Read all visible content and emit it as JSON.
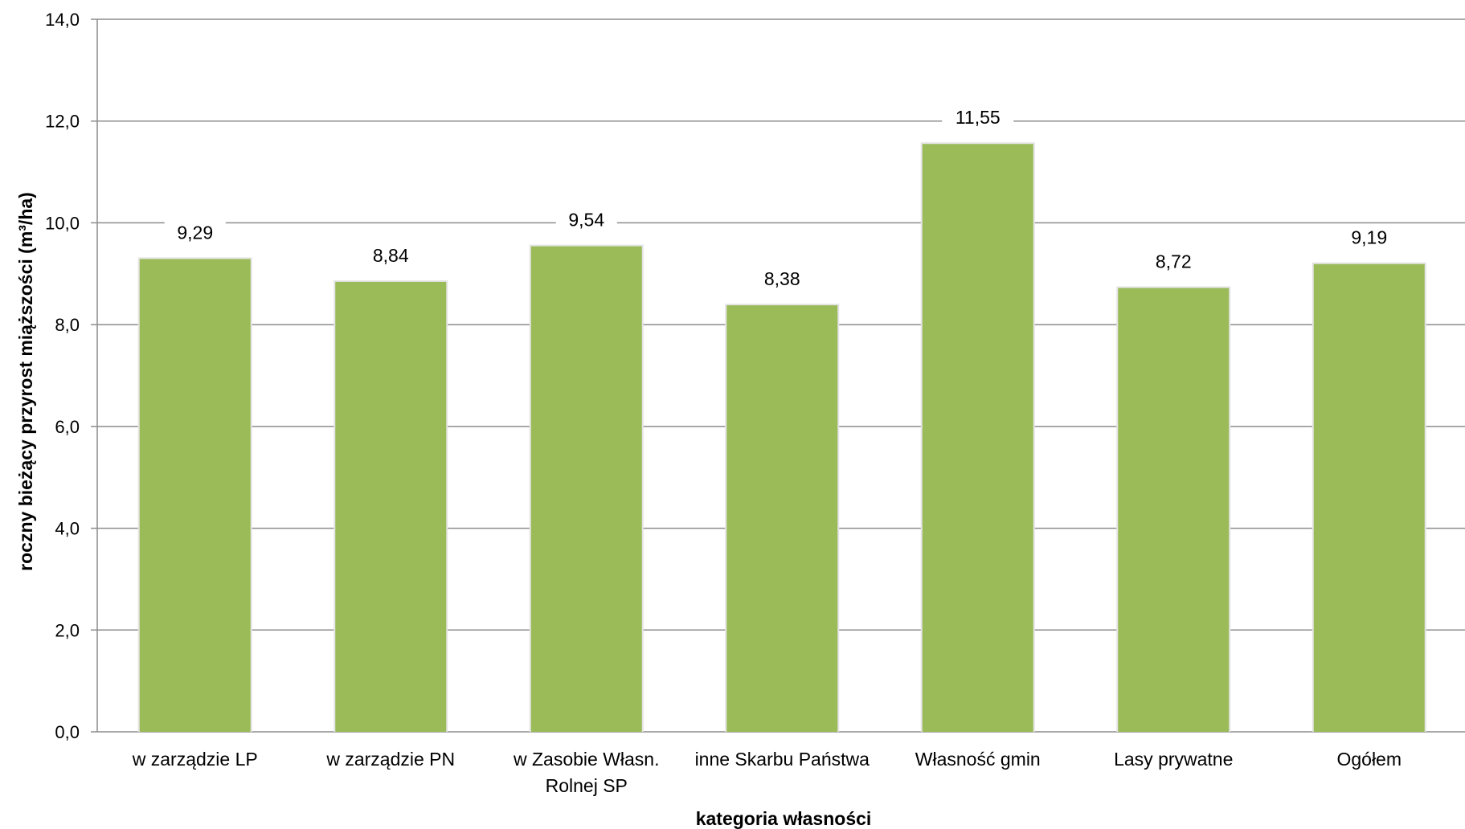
{
  "chart_data": {
    "type": "bar",
    "title": "",
    "xlabel": "kategoria własności",
    "ylabel": "roczny bieżący przyrost miąższości (m³/ha)",
    "ylim": [
      0,
      14
    ],
    "yticks": [
      "0,0",
      "2,0",
      "4,0",
      "6,0",
      "8,0",
      "10,0",
      "12,0",
      "14,0"
    ],
    "ytick_values": [
      0,
      2,
      4,
      6,
      8,
      10,
      12,
      14
    ],
    "grid": true,
    "legend": "none",
    "categories": [
      [
        "w zarządzie LP"
      ],
      [
        "w zarządzie PN"
      ],
      [
        "w Zasobie Własn.",
        "Rolnej SP"
      ],
      [
        "inne Skarbu Państwa"
      ],
      [
        "Własność gmin"
      ],
      [
        "Lasy prywatne"
      ],
      [
        "Ogółem"
      ]
    ],
    "values": [
      9.29,
      8.84,
      9.54,
      8.38,
      11.55,
      8.72,
      9.19
    ],
    "value_labels": [
      "9,29",
      "8,84",
      "9,54",
      "8,38",
      "11,55",
      "8,72",
      "9,19"
    ],
    "colors": {
      "bar": "#9bbb59",
      "grid": "#8c8c8c",
      "axis": "#8c8c8c"
    }
  }
}
